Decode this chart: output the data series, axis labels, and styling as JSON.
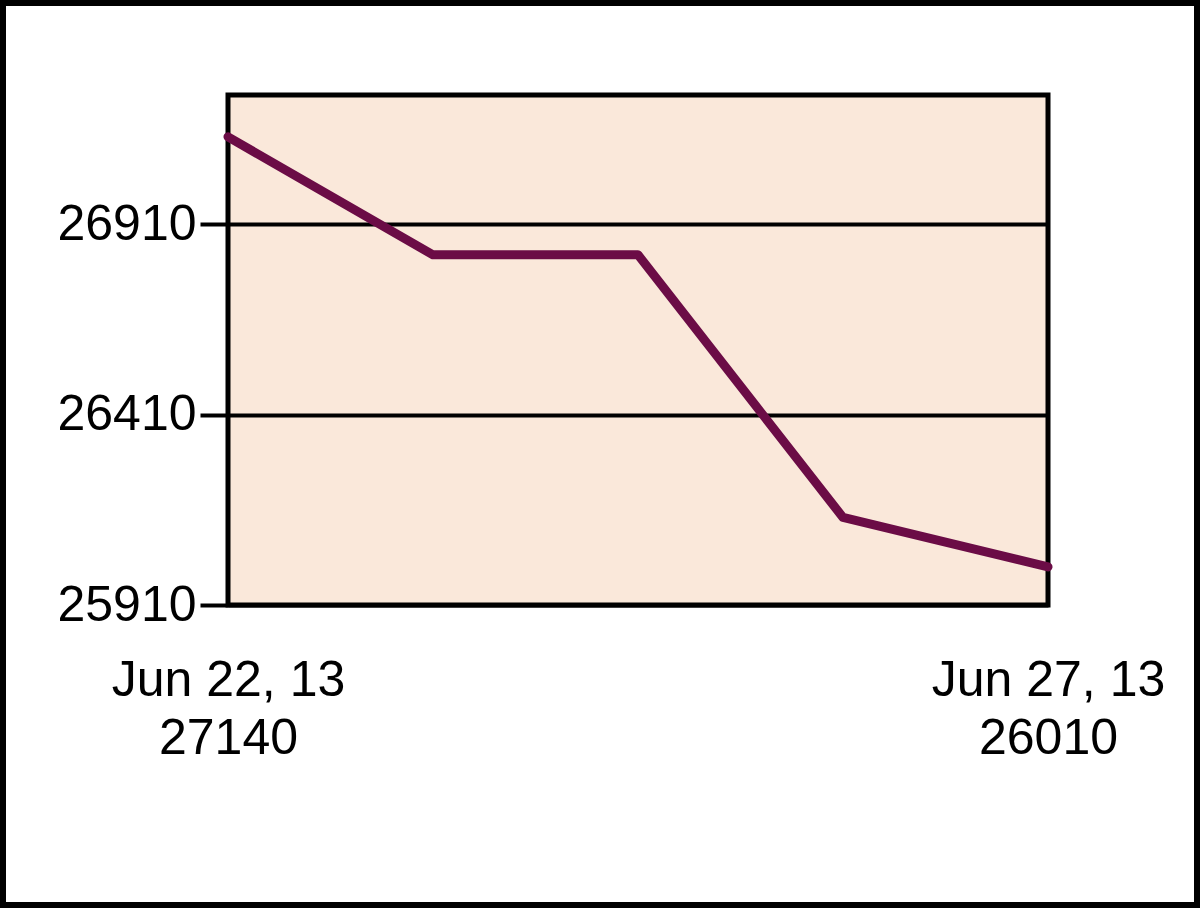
{
  "chart_data": {
    "type": "line",
    "categories": [
      "Jun 22, 13",
      null,
      null,
      null,
      "Jun 27, 13"
    ],
    "series": [
      {
        "color": "#6b0c46",
        "values": [
          27140,
          26830,
          26830,
          26140,
          26010
        ],
        "value_labels": [
          "27140",
          null,
          null,
          null,
          "26010"
        ]
      }
    ],
    "ylim": [
      25910,
      27250
    ],
    "yticks": [
      25910,
      26410,
      26910
    ],
    "grid": "y",
    "legend": false,
    "marker": "none",
    "line_style": "solid"
  }
}
